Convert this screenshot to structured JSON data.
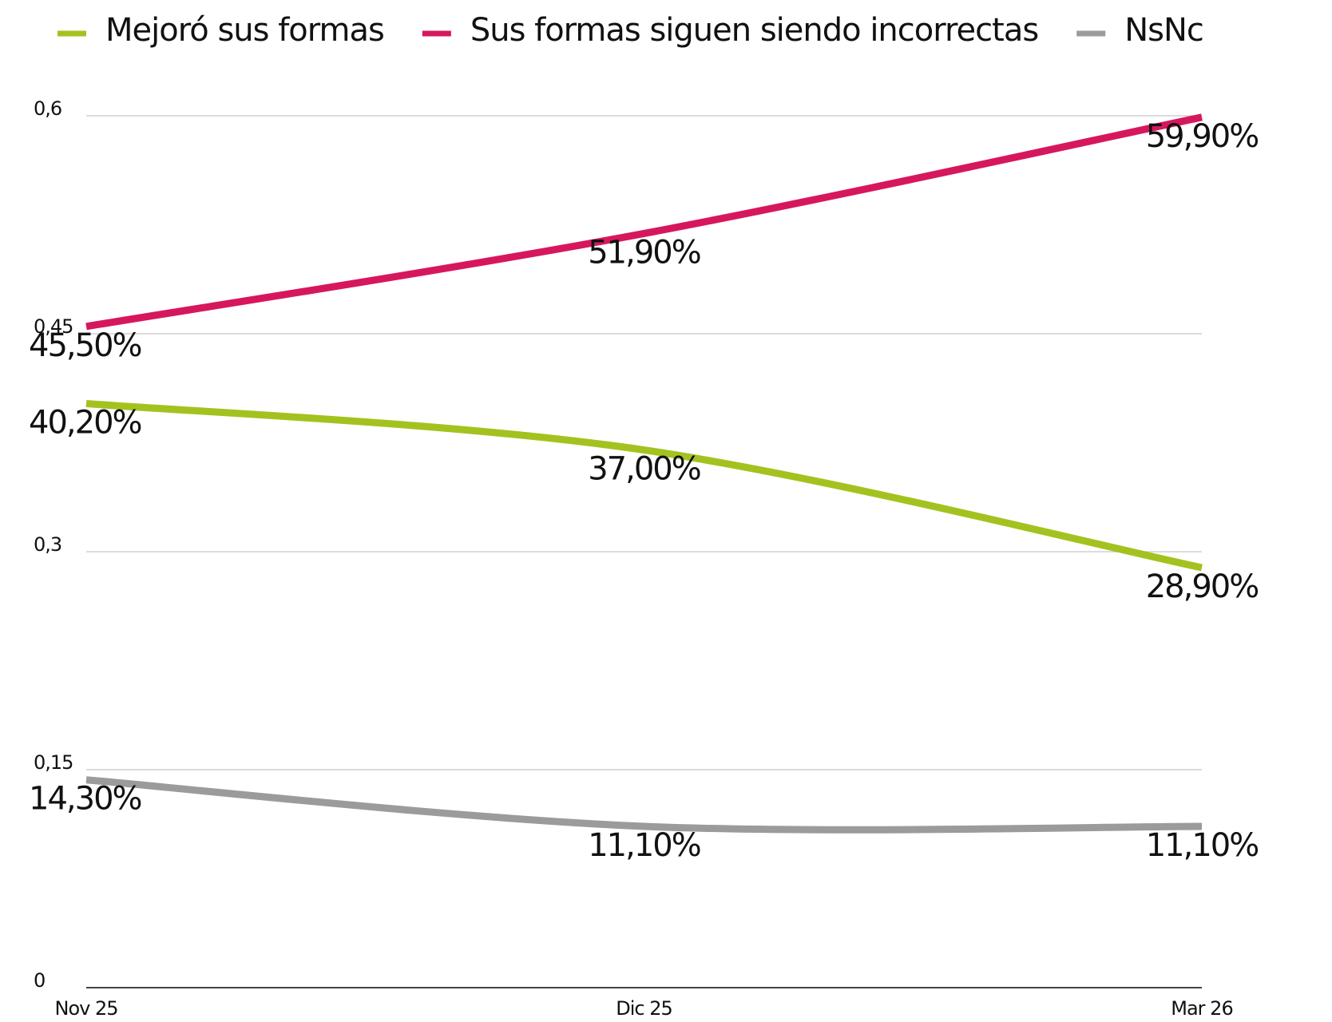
{
  "chart_data": {
    "type": "line",
    "categories": [
      "Nov 25",
      "Dic 25",
      "Mar 26"
    ],
    "series": [
      {
        "name": "Mejoró sus formas",
        "color": "#a4c21f",
        "values": [
          0.402,
          0.37,
          0.289
        ],
        "value_labels": [
          "40,20%",
          "37,00%",
          "28,90%"
        ]
      },
      {
        "name": "Sus formas siguen siendo incorrectas",
        "color": "#d6175e",
        "values": [
          0.455,
          0.519,
          0.599
        ],
        "value_labels": [
          "45,50%",
          "51,90%",
          "59,90%"
        ]
      },
      {
        "name": "NsNc",
        "color": "#9b9b9b",
        "values": [
          0.143,
          0.111,
          0.111
        ],
        "value_labels": [
          "14,30%",
          "11,10%",
          "11,10%"
        ]
      }
    ],
    "ylim": [
      0,
      0.6
    ],
    "yticks": [
      0,
      {
        "value": 0.15,
        "label": "0,15"
      },
      {
        "value": 0.3,
        "label": "0,3"
      },
      {
        "value": 0.45,
        "label": "0,45"
      },
      {
        "value": 0.6,
        "label": "0,6"
      }
    ],
    "grid": true
  }
}
